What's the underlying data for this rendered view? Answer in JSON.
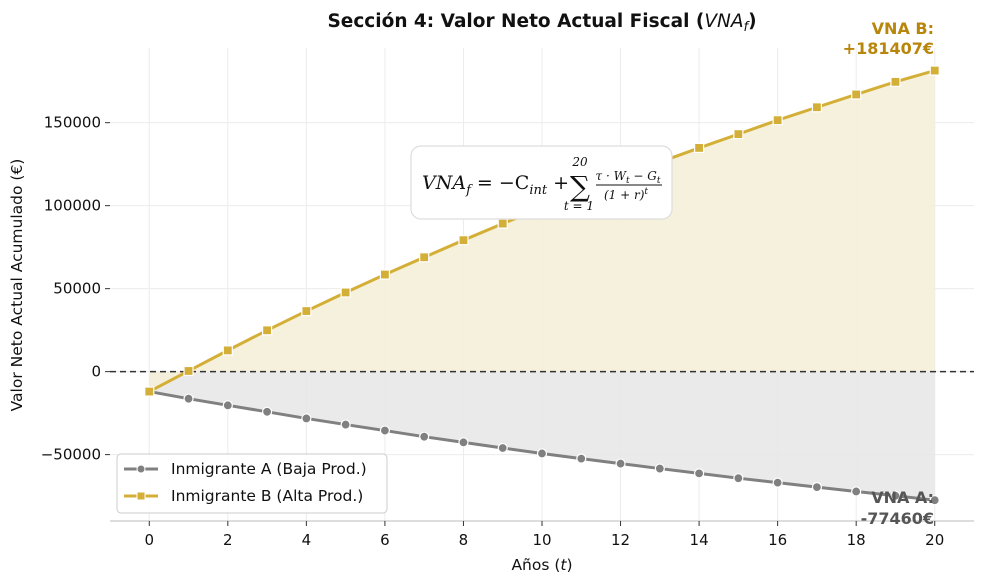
{
  "chart_data": {
    "type": "line",
    "title": "Sección 4: Valor Neto Actual Fiscal (",
    "title_math": "VNA",
    "title_math_sub": "f",
    "title_end": ")",
    "xlabel": "Años (",
    "xlabel_var": "t",
    "xlabel_end": ")",
    "ylabel": "Valor Neto Actual Acumulado (€)",
    "xlim": [
      -1,
      21
    ],
    "ylim": [
      -90000,
      195000
    ],
    "xticks": [
      0,
      2,
      4,
      6,
      8,
      10,
      12,
      14,
      16,
      18,
      20
    ],
    "yticks": [
      -50000,
      0,
      50000,
      100000,
      150000
    ],
    "ytick_labels": [
      "−50000",
      "0",
      "50000",
      "100000",
      "150000"
    ],
    "grid": true,
    "reference_line_y": 0,
    "x": [
      0,
      1,
      2,
      3,
      4,
      5,
      6,
      7,
      8,
      9,
      10,
      11,
      12,
      13,
      14,
      15,
      16,
      17,
      18,
      19,
      20
    ],
    "series": [
      {
        "name": "Inmigrante A (Baja Prod.)",
        "color": "#808080",
        "fill": "#e8e8e8",
        "marker": "circle",
        "values": [
          -12000,
          -16300,
          -20300,
          -24200,
          -28200,
          -31900,
          -35500,
          -39200,
          -42600,
          -46000,
          -49300,
          -52400,
          -55400,
          -58400,
          -61300,
          -64200,
          -66900,
          -69600,
          -72200,
          -74800,
          -77460
        ]
      },
      {
        "name": "Inmigrante B (Alta Prod.)",
        "color": "#D4AF37",
        "fill": "#f5efd8",
        "marker": "square",
        "values": [
          -12000,
          400,
          12800,
          24900,
          36500,
          47700,
          58500,
          68900,
          79200,
          89200,
          98700,
          108000,
          117200,
          126200,
          134800,
          143100,
          151500,
          159300,
          167000,
          174600,
          181407
        ]
      }
    ],
    "legend_position": "lower-left",
    "annotations": [
      {
        "id": "B",
        "line1": "VNA B:",
        "line2": "+181407€"
      },
      {
        "id": "A",
        "line1": "VNA A:",
        "line2": "-77460€"
      }
    ],
    "formula_box": {
      "lhs": "VNA",
      "lhs_sub": "f",
      "eq": " = −C",
      "eq_sub": "int",
      "plus": " + ",
      "sum_upper": "20",
      "sum_lower": "t = 1",
      "numerator": "τ · W",
      "numerator_sub_t": "t",
      "numerator_minus": " − G",
      "denominator": "(1 + r)",
      "denominator_sup": "t"
    }
  }
}
